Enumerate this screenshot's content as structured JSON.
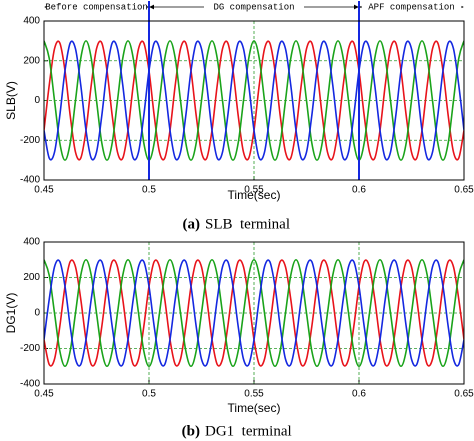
{
  "chart_data": [
    {
      "type": "line",
      "caption_label": "(a)",
      "caption": "SLB  terminal",
      "xlabel": "Time(sec)",
      "ylabel": "SLB(V)",
      "xlim": [
        0.45,
        0.65
      ],
      "xticks": [
        0.45,
        0.5,
        0.55,
        0.6,
        0.65
      ],
      "ylim": [
        -400,
        400
      ],
      "yticks": [
        -400,
        -200,
        0,
        200,
        400
      ],
      "grid": true,
      "regions": [
        {
          "label": "Before compensation",
          "start": 0.45,
          "end": 0.5
        },
        {
          "label": "DG compensation",
          "start": 0.5,
          "end": 0.6
        },
        {
          "label": "APF compensation",
          "start": 0.6,
          "end": 0.65
        }
      ],
      "x": [
        0.45,
        0.4525,
        0.455,
        0.4575,
        0.46,
        0.4625,
        0.465,
        0.4675,
        0.47,
        0.4725,
        0.475,
        0.4775,
        0.48,
        0.4825,
        0.485,
        0.4875,
        0.49,
        0.4925,
        0.495,
        0.4975,
        0.5,
        0.5025,
        0.505,
        0.5075,
        0.51,
        0.5125,
        0.515,
        0.5175,
        0.52,
        0.5225,
        0.525,
        0.5275,
        0.53,
        0.5325,
        0.535,
        0.5375,
        0.54,
        0.5425,
        0.545,
        0.5475,
        0.55,
        0.5525,
        0.555,
        0.5575,
        0.56,
        0.5625,
        0.565,
        0.5675,
        0.57,
        0.5725,
        0.575,
        0.5775,
        0.58,
        0.5825,
        0.585,
        0.5875,
        0.59,
        0.5925,
        0.595,
        0.5975,
        0.6,
        0.6025,
        0.605,
        0.6075,
        0.61,
        0.6125,
        0.615,
        0.6175,
        0.62,
        0.6225,
        0.625,
        0.6275,
        0.63,
        0.6325,
        0.635,
        0.6375,
        0.64,
        0.6425,
        0.645,
        0.6475,
        0.65
      ],
      "series": [
        {
          "color": "#e8131b",
          "values": [
            -150,
            78,
            260,
            290,
            150,
            -78,
            -260,
            -290,
            -150,
            78,
            260,
            290,
            150,
            -78,
            -260,
            -290,
            -150,
            78,
            260,
            290,
            150,
            -78,
            -260,
            -290,
            -150,
            78,
            260,
            290,
            150,
            -78,
            -260,
            -290,
            -150,
            78,
            260,
            290,
            150,
            -78,
            -260,
            -290,
            -150,
            78,
            260,
            290,
            150,
            -78,
            -260,
            -290,
            -150,
            78,
            260,
            290,
            150,
            -78,
            -260,
            -290,
            -150,
            78,
            260,
            290,
            150,
            -78,
            -260,
            -290,
            -150,
            78,
            260,
            290,
            150,
            -78,
            -260,
            -290,
            -150,
            78,
            260,
            290,
            150,
            -78,
            -260,
            -290,
            -150
          ]
        },
        {
          "color": "#1aa31a",
          "values": [
            300,
            212,
            0,
            -212,
            -300,
            -212,
            0,
            212,
            300,
            212,
            0,
            -212,
            -300,
            -212,
            0,
            212,
            300,
            212,
            0,
            -212,
            -300,
            -212,
            0,
            212,
            300,
            212,
            0,
            -212,
            -300,
            -212,
            0,
            212,
            300,
            212,
            0,
            -212,
            -300,
            -212,
            0,
            212,
            300,
            212,
            0,
            -212,
            -300,
            -212,
            0,
            212,
            300,
            212,
            0,
            -212,
            -300,
            -212,
            0,
            212,
            300,
            212,
            0,
            -212,
            -300,
            -212,
            0,
            212,
            300,
            212,
            0,
            -212,
            -300,
            -212,
            0,
            212,
            300,
            212,
            0,
            -212,
            -300,
            -212,
            0,
            212,
            300
          ]
        },
        {
          "color": "#1428e0",
          "values": [
            -150,
            -290,
            -260,
            -78,
            150,
            290,
            260,
            78,
            -150,
            -290,
            -260,
            -78,
            150,
            290,
            260,
            78,
            -150,
            -290,
            -260,
            -78,
            150,
            290,
            260,
            78,
            -150,
            -290,
            -260,
            -78,
            150,
            290,
            260,
            78,
            -150,
            -290,
            -260,
            -78,
            150,
            290,
            260,
            78,
            -150,
            -290,
            -260,
            -78,
            150,
            290,
            260,
            78,
            -150,
            -290,
            -260,
            -78,
            150,
            290,
            260,
            78,
            -150,
            -290,
            -260,
            -78,
            150,
            290,
            260,
            78,
            -150,
            -290,
            -260,
            -78,
            150,
            290,
            260,
            78,
            -150,
            -290,
            -260,
            -78,
            150,
            290,
            260,
            78,
            -150
          ]
        }
      ]
    },
    {
      "type": "line",
      "caption_label": "(b)",
      "caption": "DG1  terminal",
      "xlabel": "Time(sec)",
      "ylabel": "DG1(V)",
      "xlim": [
        0.45,
        0.65
      ],
      "xticks": [
        0.45,
        0.5,
        0.55,
        0.6,
        0.65
      ],
      "ylim": [
        -400,
        400
      ],
      "yticks": [
        -400,
        -200,
        0,
        200,
        400
      ],
      "grid": true,
      "x": [
        0.45,
        0.4525,
        0.455,
        0.4575,
        0.46,
        0.4625,
        0.465,
        0.4675,
        0.47,
        0.4725,
        0.475,
        0.4775,
        0.48,
        0.4825,
        0.485,
        0.4875,
        0.49,
        0.4925,
        0.495,
        0.4975,
        0.5,
        0.5025,
        0.505,
        0.5075,
        0.51,
        0.5125,
        0.515,
        0.5175,
        0.52,
        0.5225,
        0.525,
        0.5275,
        0.53,
        0.5325,
        0.535,
        0.5375,
        0.54,
        0.5425,
        0.545,
        0.5475,
        0.55,
        0.5525,
        0.555,
        0.5575,
        0.56,
        0.5625,
        0.565,
        0.5675,
        0.57,
        0.5725,
        0.575,
        0.5775,
        0.58,
        0.5825,
        0.585,
        0.5875,
        0.59,
        0.5925,
        0.595,
        0.5975,
        0.6,
        0.6025,
        0.605,
        0.6075,
        0.61,
        0.6125,
        0.615,
        0.6175,
        0.62,
        0.6225,
        0.625,
        0.6275,
        0.63,
        0.6325,
        0.635,
        0.6375,
        0.64,
        0.6425,
        0.645,
        0.6475,
        0.65
      ],
      "series": [
        {
          "color": "#e8131b",
          "values": [
            -150,
            -290,
            -260,
            -78,
            150,
            290,
            260,
            78,
            -150,
            -290,
            -260,
            -78,
            150,
            290,
            260,
            78,
            -150,
            -290,
            -260,
            -78,
            150,
            290,
            260,
            78,
            -150,
            -290,
            -260,
            -78,
            150,
            290,
            260,
            78,
            -150,
            -290,
            -260,
            -78,
            150,
            290,
            260,
            78,
            -150,
            -290,
            -260,
            -78,
            150,
            290,
            260,
            78,
            -150,
            -290,
            -260,
            -78,
            150,
            290,
            260,
            78,
            -150,
            -290,
            -260,
            -78,
            150,
            290,
            260,
            78,
            -150,
            -290,
            -260,
            -78,
            150,
            290,
            260,
            78,
            -150,
            -290,
            -260,
            -78,
            150,
            290,
            260,
            78,
            -150
          ]
        },
        {
          "color": "#1aa31a",
          "values": [
            300,
            212,
            0,
            -212,
            -300,
            -212,
            0,
            212,
            300,
            212,
            0,
            -212,
            -300,
            -212,
            0,
            212,
            300,
            212,
            0,
            -212,
            -300,
            -212,
            0,
            212,
            300,
            212,
            0,
            -212,
            -300,
            -212,
            0,
            212,
            300,
            212,
            0,
            -212,
            -300,
            -212,
            0,
            212,
            300,
            212,
            0,
            -212,
            -300,
            -212,
            0,
            212,
            300,
            212,
            0,
            -212,
            -300,
            -212,
            0,
            212,
            300,
            212,
            0,
            -212,
            -300,
            -212,
            0,
            212,
            300,
            212,
            0,
            -212,
            -300,
            -212,
            0,
            212,
            300,
            212,
            0,
            -212,
            -300,
            -212,
            0,
            212,
            300
          ]
        },
        {
          "color": "#1428e0",
          "values": [
            -150,
            78,
            260,
            290,
            150,
            -78,
            -260,
            -290,
            -150,
            78,
            260,
            290,
            150,
            -78,
            -260,
            -290,
            -150,
            78,
            260,
            290,
            150,
            -78,
            -260,
            -290,
            -150,
            78,
            260,
            290,
            150,
            -78,
            -260,
            -290,
            -150,
            78,
            260,
            290,
            150,
            -78,
            -260,
            -290,
            -150,
            78,
            260,
            290,
            150,
            -78,
            -260,
            -290,
            -150,
            78,
            260,
            290,
            150,
            -78,
            -260,
            -290,
            -150,
            78,
            260,
            290,
            150,
            -78,
            -260,
            -290,
            -150,
            78,
            260,
            290,
            150,
            -78,
            -260,
            -290,
            -150,
            78,
            260,
            290,
            150,
            -78,
            -260,
            -290,
            -150
          ]
        }
      ]
    }
  ]
}
